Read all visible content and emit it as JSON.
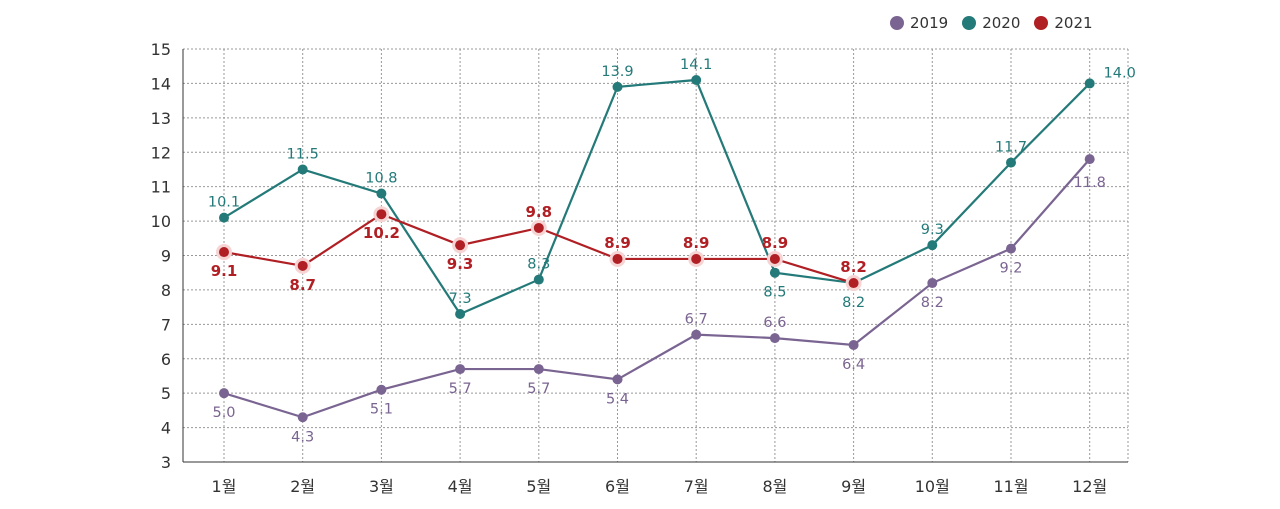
{
  "chart_data": {
    "type": "line",
    "categories": [
      "1월",
      "2월",
      "3월",
      "4월",
      "5월",
      "6월",
      "7월",
      "8월",
      "9월",
      "10월",
      "11월",
      "12월"
    ],
    "ylim": [
      3,
      15
    ],
    "yticks": [
      3,
      4,
      5,
      6,
      7,
      8,
      9,
      10,
      11,
      12,
      13,
      14,
      15
    ],
    "grid": true,
    "legend_position": "top-right",
    "series": [
      {
        "name": "2019",
        "color": "#7a6491",
        "values": [
          5.0,
          4.3,
          5.1,
          5.7,
          5.7,
          5.4,
          6.7,
          6.6,
          6.4,
          8.2,
          9.2,
          11.8
        ]
      },
      {
        "name": "2020",
        "color": "#247a79",
        "values": [
          10.1,
          11.5,
          10.8,
          7.3,
          8.3,
          13.9,
          14.1,
          8.5,
          8.2,
          9.3,
          11.7,
          14.0
        ]
      },
      {
        "name": "2021",
        "color": "#b01f24",
        "values": [
          9.1,
          8.7,
          10.2,
          9.3,
          9.8,
          8.9,
          8.9,
          8.9,
          8.2,
          null,
          null,
          null
        ]
      }
    ],
    "data_labels": [
      [
        "5.0",
        "4.3",
        "5.1",
        "5.7",
        "5.7",
        "5.4",
        "6.7",
        "6.6",
        "6.4",
        "8.2",
        "9.2",
        "11.8"
      ],
      [
        "10.1",
        "11.5",
        "10.8",
        "7.3",
        "8.3",
        "13.9",
        "14.1",
        "8.5",
        "8.2",
        "9.3",
        "11.7",
        "14.0"
      ],
      [
        "9.1",
        "8.7",
        "10.2",
        "9.3",
        "9.8",
        "8.9",
        "8.9",
        "8.9",
        "8.2",
        "",
        "",
        ""
      ]
    ]
  }
}
